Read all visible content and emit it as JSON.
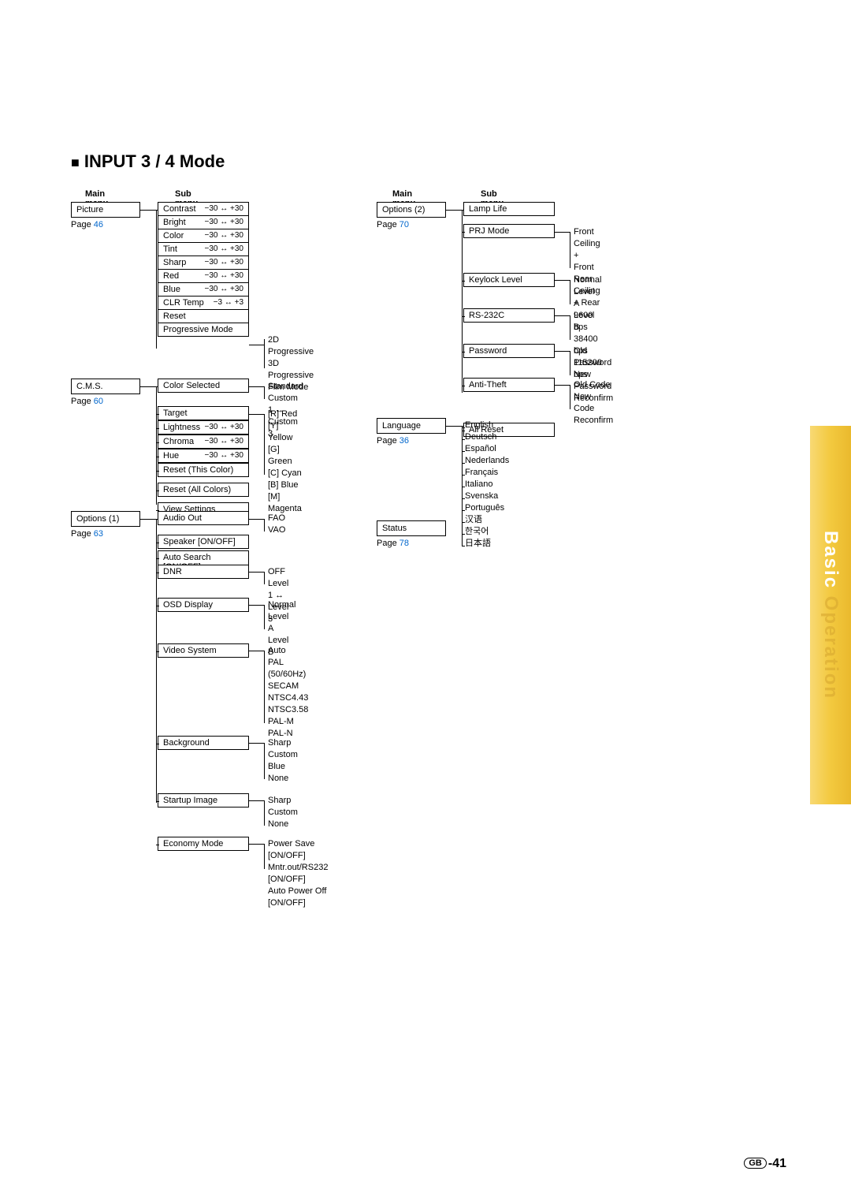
{
  "page_title": "INPUT 3 / 4 Mode",
  "side_tab": {
    "basic": "Basic",
    "operation": " Operation"
  },
  "footer_page": "-41",
  "gb": "GB",
  "headers": {
    "main_menu": "Main menu",
    "sub_menu": "Sub menu"
  },
  "pageword": "Page ",
  "left": {
    "picture": {
      "title": "Picture",
      "page": "46",
      "items": [
        {
          "label": "Contrast",
          "range": "−30 ↔ +30"
        },
        {
          "label": "Bright",
          "range": "−30 ↔ +30"
        },
        {
          "label": "Color",
          "range": "−30 ↔ +30"
        },
        {
          "label": "Tint",
          "range": "−30 ↔ +30"
        },
        {
          "label": "Sharp",
          "range": "−30 ↔ +30"
        },
        {
          "label": "Red",
          "range": "−30 ↔ +30"
        },
        {
          "label": "Blue",
          "range": "−30 ↔ +30"
        },
        {
          "label": "CLR Temp",
          "range": "−3 ↔ +3"
        },
        {
          "label": "Reset",
          "range": ""
        },
        {
          "label": "Progressive Mode",
          "range": ""
        }
      ],
      "progressive": [
        "2D Progressive",
        "3D Progressive",
        "Film Mode"
      ]
    },
    "cms": {
      "title": "C.M.S.",
      "page": "60",
      "items": [
        {
          "label": "Color Selected",
          "range": ""
        },
        {
          "label": "Target",
          "range": ""
        },
        {
          "label": "Lightness",
          "range": "−30 ↔ +30"
        },
        {
          "label": "Chroma",
          "range": "−30 ↔ +30"
        },
        {
          "label": "Hue",
          "range": "−30 ↔ +30"
        },
        {
          "label": "Reset (This Color)",
          "range": ""
        },
        {
          "label": "Reset (All Colors)",
          "range": ""
        },
        {
          "label": "View Settings",
          "range": ""
        }
      ],
      "color_selected": [
        "Standard",
        "Custom 1 ↔ Custom 3"
      ],
      "target": [
        "[R] Red",
        "[Y] Yellow",
        "[G] Green",
        "[C] Cyan",
        "[B] Blue",
        "[M] Magenta"
      ]
    },
    "options1": {
      "title": "Options (1)",
      "page": "63",
      "items": [
        {
          "label": "Audio Out"
        },
        {
          "label": "Speaker [ON/OFF]"
        },
        {
          "label": "Auto Search  [ON/OFF]"
        },
        {
          "label": "DNR"
        },
        {
          "label": "OSD Display"
        },
        {
          "label": "Video System"
        },
        {
          "label": "Background"
        },
        {
          "label": "Startup Image"
        },
        {
          "label": "Economy Mode"
        }
      ],
      "audio_out": [
        "FAO",
        "VAO"
      ],
      "dnr": [
        "OFF",
        "Level 1 ↔ Level 3"
      ],
      "osd": [
        "Normal",
        "Level A",
        "Level B"
      ],
      "video": [
        "Auto",
        "PAL (50/60Hz)",
        "SECAM",
        "NTSC4.43",
        "NTSC3.58",
        "PAL-M",
        "PAL-N"
      ],
      "background": [
        "Sharp",
        "Custom",
        "Blue",
        "None"
      ],
      "startup": [
        "Sharp",
        "Custom",
        "None"
      ],
      "economy": [
        "Power Save [ON/OFF]",
        "Mntr.out/RS232 [ON/OFF]",
        "Auto Power Off [ON/OFF]"
      ]
    }
  },
  "right": {
    "options2": {
      "title": "Options (2)",
      "page": "70",
      "items": [
        {
          "label": "Lamp Life"
        },
        {
          "label": "PRJ Mode"
        },
        {
          "label": "Keylock Level"
        },
        {
          "label": "RS-232C"
        },
        {
          "label": "Password"
        },
        {
          "label": "Anti-Theft"
        },
        {
          "label": "All Reset"
        }
      ],
      "prj": [
        "Front",
        "Ceiling + Front",
        "Rear",
        "Ceiling + Rear"
      ],
      "keylock": [
        "Normal",
        "Level A",
        "Level B"
      ],
      "rs232": [
        "9600 bps",
        "38400 bps",
        "115200 bps"
      ],
      "password": [
        "Old Password",
        "New Password",
        "Reconfirm"
      ],
      "anti_theft": [
        "Old Code",
        "New Code",
        "Reconfirm"
      ]
    },
    "language": {
      "title": "Language",
      "page": "36",
      "items": [
        "English",
        "Deutsch",
        "Español",
        "Nederlands",
        "Français",
        "Italiano",
        "Svenska",
        "Português",
        "汉语",
        "한국어",
        "日本語"
      ]
    },
    "status": {
      "title": "Status",
      "page": "78"
    }
  }
}
